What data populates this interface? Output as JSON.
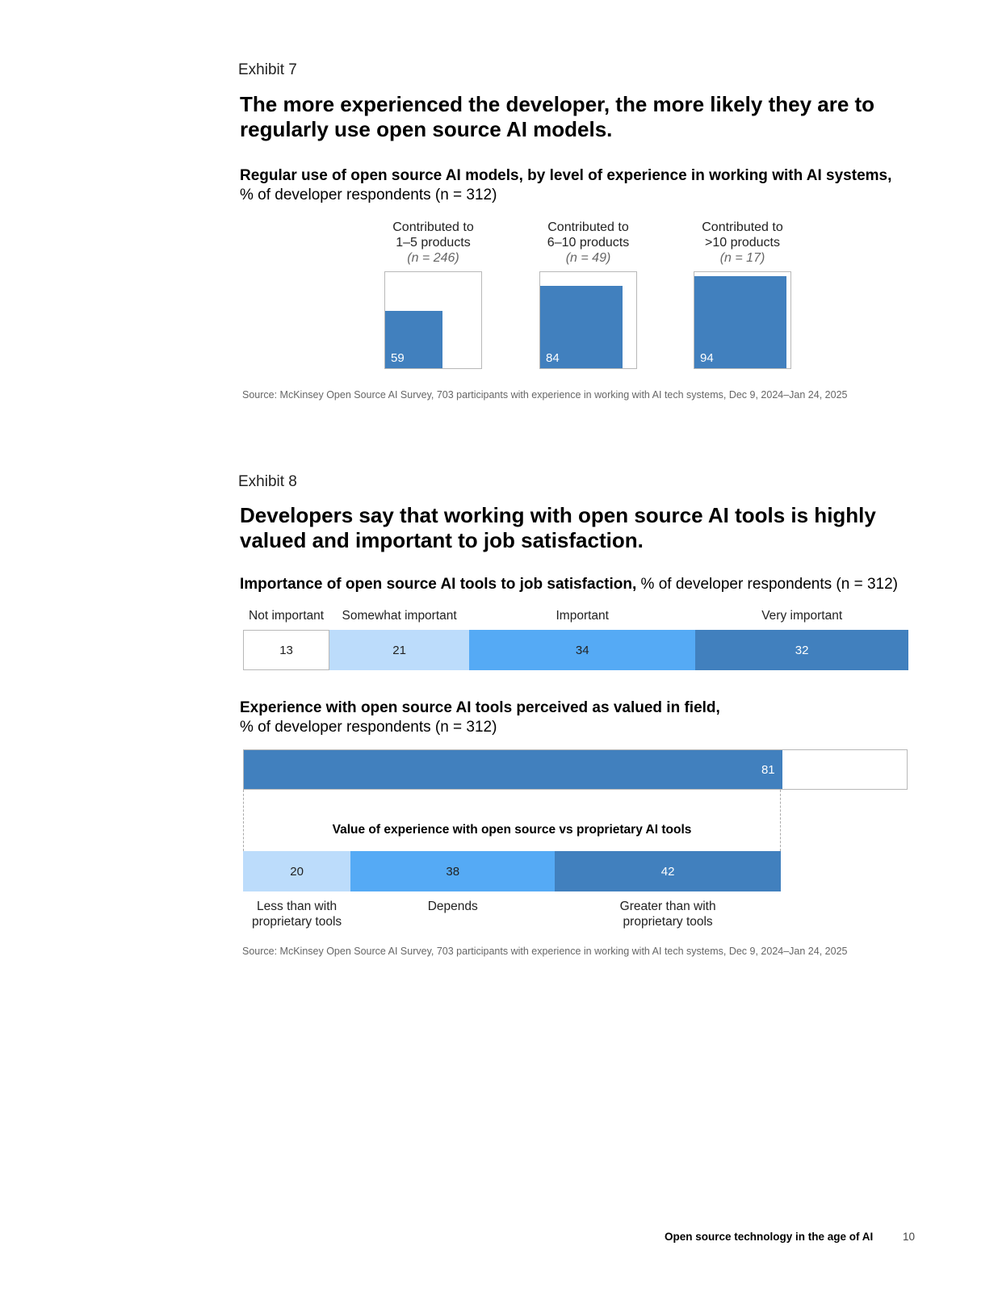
{
  "exhibit7": {
    "label": "Exhibit 7",
    "headline": "The more experienced the developer, the more likely they are to regularly use open source AI models.",
    "subtitle_bold": "Regular use of open source AI models, by level of experience in working with AI systems,",
    "subtitle_rest": "% of developer respondents (n = 312)",
    "source": "Source: McKinsey Open Source AI Survey, 703 participants with experience in working with AI tech systems, Dec 9, 2024–Jan 24, 2025"
  },
  "exhibit8": {
    "label": "Exhibit 8",
    "headline": "Developers say that working with open source AI tools is highly valued and important to job satisfaction.",
    "chart1_title_bold": "Importance of open source AI tools to job satisfaction,",
    "chart1_title_rest": "% of developer respondents (n = 312)",
    "chart2_title_bold": "Experience with open source AI tools perceived as valued in field,",
    "chart2_title_rest": "% of developer respondents (n = 312)",
    "inner_title": "Value of experience with open source vs proprietary AI tools",
    "source": "Source: McKinsey Open Source AI Survey, 703 participants with experience in working with AI tech systems, Dec 9, 2024–Jan 24, 2025"
  },
  "footer": {
    "title": "Open source technology in the age of AI",
    "page": "10"
  },
  "colors": {
    "dark_blue": "#4180be",
    "mid_blue": "#55aaf5",
    "light_blue": "#bcdcfb",
    "white": "#ffffff"
  },
  "chart_data": [
    {
      "type": "bar",
      "categories": [
        "Contributed to 1–5 products",
        "Contributed to 6–10 products",
        "Contributed to >10 products"
      ],
      "category_lines": [
        [
          "Contributed to",
          "1–5 products"
        ],
        [
          "Contributed to",
          "6–10 products"
        ],
        [
          "Contributed to",
          ">10 products"
        ]
      ],
      "category_n": [
        "(n = 246)",
        "(n = 49)",
        "(n = 17)"
      ],
      "values": [
        59,
        84,
        94
      ],
      "ylim": [
        0,
        100
      ]
    },
    {
      "type": "bar",
      "orientation": "horizontal-stacked",
      "categories": [
        "Not important",
        "Somewhat important",
        "Important",
        "Very important"
      ],
      "values": [
        13,
        21,
        34,
        32
      ],
      "colors": [
        "#ffffff",
        "#bcdcfb",
        "#55aaf5",
        "#4180be"
      ],
      "xlim": [
        0,
        100
      ]
    },
    {
      "type": "bar",
      "orientation": "horizontal",
      "values": [
        81
      ],
      "xlim": [
        0,
        100
      ]
    },
    {
      "type": "bar",
      "orientation": "horizontal-stacked",
      "categories": [
        "Less than with proprietary tools",
        "Depends",
        "Greater than with proprietary tools"
      ],
      "category_lines": [
        [
          "Less than with",
          "proprietary tools"
        ],
        [
          "Depends"
        ],
        [
          "Greater than with",
          "proprietary tools"
        ]
      ],
      "values": [
        20,
        38,
        42
      ],
      "colors": [
        "#bcdcfb",
        "#55aaf5",
        "#4180be"
      ],
      "xlim": [
        0,
        100
      ]
    }
  ]
}
